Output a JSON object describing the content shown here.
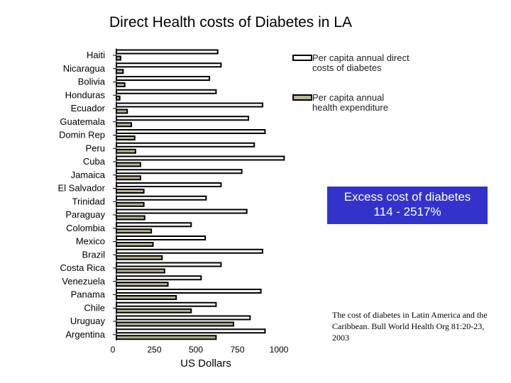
{
  "chart_data": {
    "type": "bar",
    "orientation": "horizontal",
    "title": "Direct Health costs of Diabetes in LA",
    "xlabel": "US Dollars",
    "xlim": [
      0,
      1000
    ],
    "xticks": [
      "0",
      "250",
      "500",
      "750",
      "1000"
    ],
    "categories": [
      "Haiti",
      "Nicaragua",
      "Bolivia",
      "Honduras",
      "Ecuador",
      "Guatemala",
      "Domin Rep",
      "Peru",
      "Cuba",
      "Jamaica",
      "El Salvador",
      "Trinidad",
      "Paraguay",
      "Colombia",
      "Mexico",
      "Brazil",
      "Costa Rica",
      "Venezuela",
      "Panama",
      "Chile",
      "Uruguay",
      "Argentina"
    ],
    "series": [
      {
        "name": "Per capita annual direct costs of diabetes",
        "color": "#ffffff",
        "values": [
          610,
          630,
          560,
          600,
          880,
          795,
          895,
          830,
          1010,
          755,
          630,
          540,
          785,
          450,
          535,
          880,
          630,
          510,
          870,
          600,
          805,
          895
        ]
      },
      {
        "name": "Per capita annual health expenditure",
        "color": "#b8b49a",
        "values": [
          25,
          40,
          50,
          20,
          65,
          90,
          110,
          115,
          145,
          145,
          165,
          165,
          170,
          210,
          220,
          275,
          290,
          310,
          360,
          450,
          705,
          600
        ]
      }
    ],
    "grid": false,
    "legend": "top-right"
  },
  "legend": {
    "items": [
      "Per capita annual direct costs of diabetes",
      "Per capita annual health expenditure"
    ]
  },
  "callout": {
    "line1": "Excess cost of diabetes",
    "line2": "114 - 2517%"
  },
  "citation": "The cost of diabetes in Latin America and the Caribbean.  Bull World Health Org  81:20-23, 2003"
}
